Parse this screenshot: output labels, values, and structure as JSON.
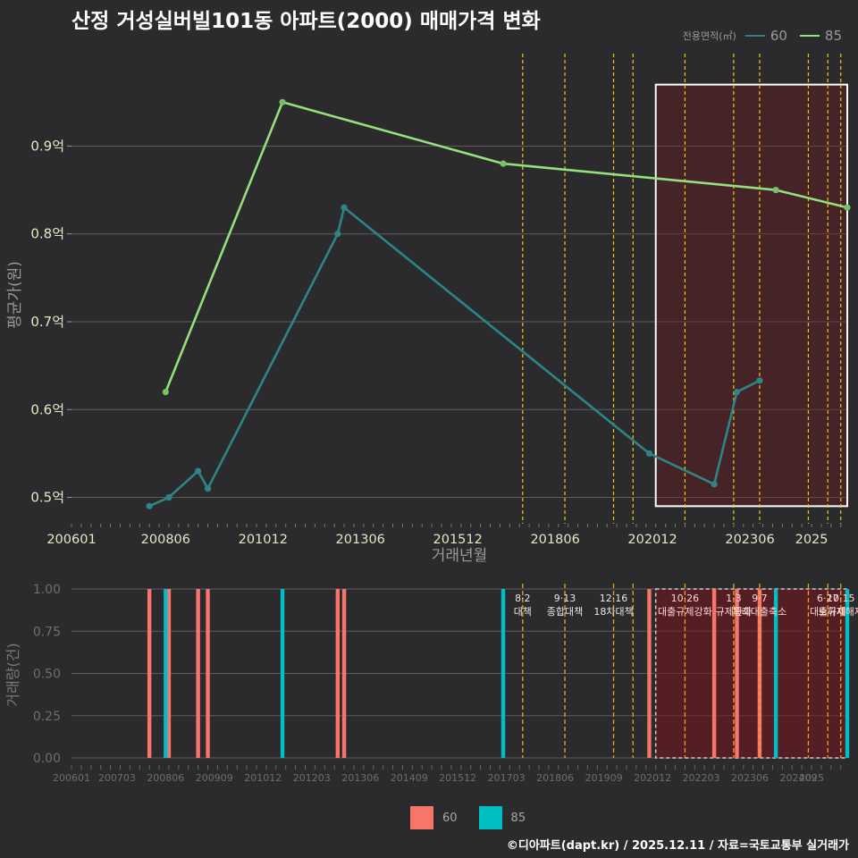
{
  "title": "산정 거성실버빌101동 아파트(2000) 매매가격 변화",
  "footer": "©디아파트(dapt.kr) / 2025.12.11 / 자료=국토교통부 실거래가",
  "legend": {
    "title": "전용면적(㎡)",
    "items": [
      {
        "label": "60",
        "color": "#2f8585"
      },
      {
        "label": "85",
        "color": "#93e07c"
      }
    ]
  },
  "bar_legend": [
    {
      "label": "60",
      "color": "#f8756c"
    },
    {
      "label": "85",
      "color": "#00bfc4"
    }
  ],
  "chart_data": [
    {
      "type": "line",
      "title": "산정 거성실버빌101동 아파트(2000) 매매가격 변화",
      "xlabel": "거래년월",
      "ylabel": "평균가(원)",
      "x_range": [
        "2006-01",
        "2025-12"
      ],
      "ylim": [
        0.47,
        0.99
      ],
      "x_ticks": [
        "200601",
        "200806",
        "201012",
        "201306",
        "201512",
        "201806",
        "202012",
        "202306",
        "2025"
      ],
      "y_ticks": [
        "0.5억",
        "0.6억",
        "0.7억",
        "0.8억",
        "0.9억"
      ],
      "series": [
        {
          "name": "60",
          "points": [
            [
              "2008-01",
              0.49
            ],
            [
              "2008-07",
              0.5
            ],
            [
              "2009-04",
              0.53
            ],
            [
              "2009-07",
              0.51
            ],
            [
              "2012-11",
              0.8
            ],
            [
              "2013-01",
              0.83
            ],
            [
              "2020-11",
              0.55
            ],
            [
              "2022-07",
              0.515
            ],
            [
              "2023-02",
              0.62
            ],
            [
              "2023-09",
              0.633
            ]
          ]
        },
        {
          "name": "85",
          "points": [
            [
              "2008-06",
              0.62
            ],
            [
              "2011-06",
              0.95
            ],
            [
              "2017-02",
              0.88
            ],
            [
              "2024-02",
              0.85
            ],
            [
              "2025-12",
              0.83
            ]
          ]
        }
      ],
      "highlight_range": [
        "2021-01",
        "2025-12"
      ]
    },
    {
      "type": "bar",
      "xlabel": "",
      "ylabel": "거래량(건)",
      "ylim": [
        0,
        1
      ],
      "y_ticks": [
        "0.00",
        "0.25",
        "0.50",
        "0.75",
        "1.00"
      ],
      "x_ticks": [
        "200601",
        "200703",
        "200806",
        "200909",
        "201012",
        "201203",
        "201306",
        "201409",
        "201512",
        "201703",
        "201806",
        "201909",
        "202012",
        "202203",
        "202306",
        "202409",
        "2025"
      ],
      "series": [
        {
          "name": "60",
          "months": [
            "2008-01",
            "2008-07",
            "2009-04",
            "2009-07",
            "2012-11",
            "2013-01",
            "2020-11",
            "2022-07",
            "2023-02",
            "2023-09"
          ],
          "values": [
            1,
            1,
            1,
            1,
            1,
            1,
            1,
            1,
            1,
            1
          ]
        },
        {
          "name": "85",
          "months": [
            "2008-06",
            "2011-06",
            "2017-02",
            "2024-02",
            "2025-12"
          ],
          "values": [
            1,
            1,
            1,
            1,
            1
          ]
        }
      ],
      "policy_events": [
        {
          "date": "2017-08",
          "label": "8·2 대책"
        },
        {
          "date": "2018-09",
          "label": "9·13 종합대책"
        },
        {
          "date": "2019-12",
          "label": "12·16 18차대책"
        },
        {
          "date": "2020-06",
          "label": ""
        },
        {
          "date": "2021-10",
          "label": "10·26 대출규제강화"
        },
        {
          "date": "2023-01",
          "label": "1·3 규제완화"
        },
        {
          "date": "2023-09",
          "label": "9·7 특례대출축소"
        },
        {
          "date": "2024-12",
          "label": ""
        },
        {
          "date": "2025-06",
          "label": "6·27 대출규제"
        },
        {
          "date": "2025-10",
          "label": "10·15 토허제해제"
        }
      ],
      "highlight_range": [
        "2021-01",
        "2025-12"
      ]
    }
  ]
}
